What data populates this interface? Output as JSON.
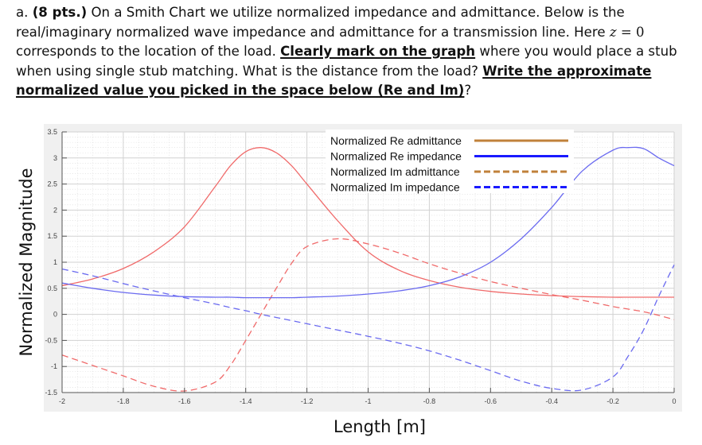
{
  "question": {
    "prefix": "a. ",
    "points": "(8 pts.)",
    "text1": " On a Smith Chart we utilize normalized impedance and admittance.  Below is the real/imaginary normalized wave impedance and admittance for a transmission line.  Here ",
    "math_var": "z",
    "math_eq": " = 0",
    "text2": " corresponds to the location of the load. ",
    "emph1": "Clearly mark on the graph",
    "text3": " where you would place a stub when using single stub matching. What is the distance from the load? ",
    "emph2": "Write the approximate normalized value you picked in the space below (Re and Im)",
    "suffix": "?"
  },
  "chart_data": {
    "type": "line",
    "title": "",
    "xlabel": "Length [m]",
    "ylabel": "Normalized Magnitude",
    "xlim": [
      -2,
      0
    ],
    "ylim": [
      -1.5,
      3.5
    ],
    "x_ticks": [
      "-2",
      "-1.8",
      "-1.6",
      "-1.4",
      "-1.2",
      "-1",
      "-0.8",
      "-0.6",
      "-0.4",
      "-0.2",
      "0"
    ],
    "y_ticks": [
      "-1.5",
      "-1",
      "-0.5",
      "0",
      "0.5",
      "1",
      "1.5",
      "2",
      "2.5",
      "3",
      "3.5"
    ],
    "grid": true,
    "minor_grid": true,
    "legend_position": "upper center-right",
    "legend": [
      {
        "label": "Normalized Re admittance",
        "color": "#c0813a",
        "style": "solid"
      },
      {
        "label": "Normalized Re impedance",
        "color": "#1a1aff",
        "style": "solid"
      },
      {
        "label": "Normalized Im admittance",
        "color": "#c0813a",
        "style": "dashed"
      },
      {
        "label": "Normalized Im impedance",
        "color": "#1a1aff",
        "style": "dashed"
      }
    ],
    "x": [
      -2.0,
      -1.9,
      -1.8,
      -1.7,
      -1.6,
      -1.5,
      -1.45,
      -1.4,
      -1.35,
      -1.3,
      -1.25,
      -1.2,
      -1.1,
      -1.0,
      -0.9,
      -0.8,
      -0.7,
      -0.6,
      -0.5,
      -0.4,
      -0.3,
      -0.2,
      -0.15,
      -0.1,
      -0.05,
      0.0
    ],
    "series": [
      {
        "name": "Normalized Re admittance",
        "color": "#f06a6a",
        "style": "solid",
        "values": [
          0.55,
          0.68,
          0.88,
          1.2,
          1.68,
          2.45,
          2.85,
          3.12,
          3.2,
          3.1,
          2.85,
          2.5,
          1.8,
          1.2,
          0.85,
          0.65,
          0.52,
          0.44,
          0.39,
          0.36,
          0.34,
          0.33,
          0.33,
          0.33,
          0.33,
          0.33
        ]
      },
      {
        "name": "Normalized Im admittance",
        "color": "#f06a6a",
        "style": "dashed",
        "values": [
          -0.78,
          -0.98,
          -1.18,
          -1.38,
          -1.47,
          -1.3,
          -0.98,
          -0.5,
          0.0,
          0.5,
          0.98,
          1.3,
          1.45,
          1.35,
          1.18,
          0.97,
          0.79,
          0.63,
          0.5,
          0.38,
          0.27,
          0.15,
          0.1,
          0.05,
          -0.02,
          -0.1
        ]
      },
      {
        "name": "Normalized Re impedance",
        "color": "#6a6af0",
        "style": "solid",
        "values": [
          0.6,
          0.5,
          0.42,
          0.37,
          0.34,
          0.33,
          0.33,
          0.32,
          0.32,
          0.32,
          0.32,
          0.33,
          0.35,
          0.39,
          0.45,
          0.55,
          0.72,
          1.0,
          1.45,
          2.05,
          2.75,
          3.15,
          3.2,
          3.18,
          3.0,
          2.85
        ]
      },
      {
        "name": "Normalized Im impedance",
        "color": "#6a6af0",
        "style": "dashed",
        "values": [
          0.87,
          0.74,
          0.59,
          0.45,
          0.32,
          0.2,
          0.13,
          0.07,
          0.0,
          -0.06,
          -0.12,
          -0.18,
          -0.3,
          -0.42,
          -0.55,
          -0.7,
          -0.88,
          -1.08,
          -1.28,
          -1.42,
          -1.45,
          -1.2,
          -0.8,
          -0.3,
          0.35,
          0.95
        ]
      }
    ]
  }
}
